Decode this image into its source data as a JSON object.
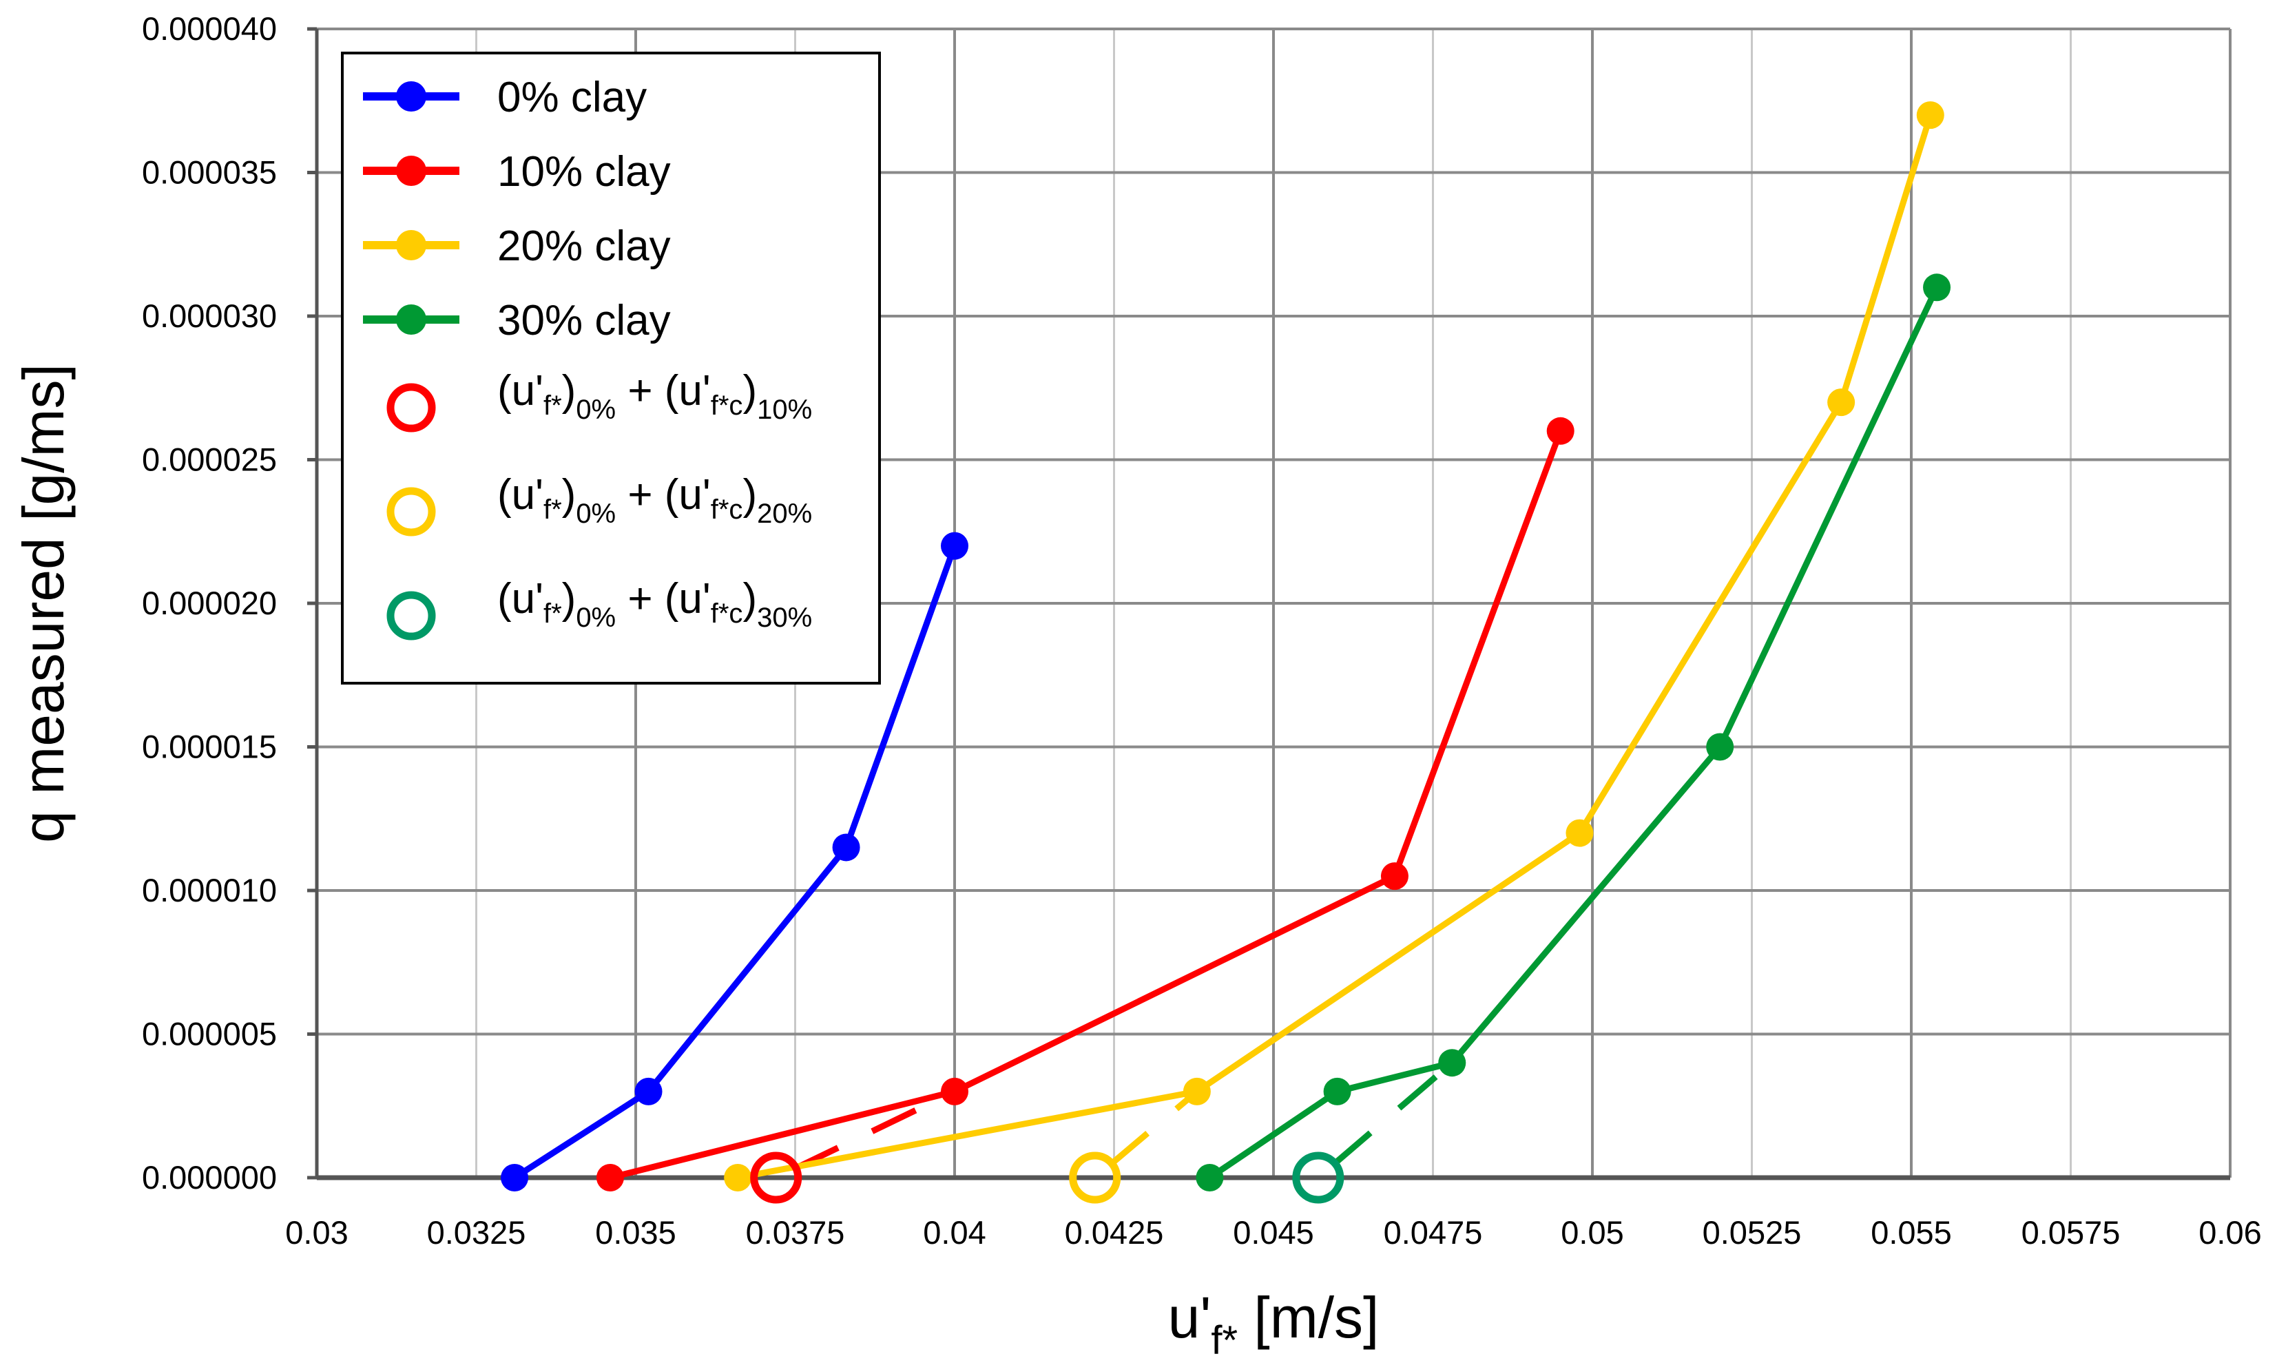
{
  "chart_data": {
    "type": "line",
    "xlabel": "u'f* [m/s]",
    "xlabel_parts": {
      "main": "u'",
      "sub": "f*",
      "unit": " [m/s]"
    },
    "ylabel": "q measured [g/ms]",
    "xlim": [
      0.03,
      0.06
    ],
    "ylim": [
      0,
      4e-05
    ],
    "x_ticks": [
      0.03,
      0.0325,
      0.035,
      0.0375,
      0.04,
      0.0425,
      0.045,
      0.0475,
      0.05,
      0.0525,
      0.055,
      0.0575,
      0.06
    ],
    "x_tick_labels": [
      "0.03",
      "0.0325",
      "0.035",
      "0.0375",
      "0.04",
      "0.0425",
      "0.045",
      "0.0475",
      "0.05",
      "0.0525",
      "0.055",
      "0.0575",
      "0.06"
    ],
    "y_ticks": [
      0,
      5e-06,
      1e-05,
      1.5e-05,
      2e-05,
      2.5e-05,
      3e-05,
      3.5e-05,
      4e-05
    ],
    "y_tick_labels": [
      "0.000000",
      "0.000005",
      "0.000010",
      "0.000015",
      "0.000020",
      "0.000025",
      "0.000030",
      "0.000035",
      "0.000040"
    ],
    "grid": true,
    "legend_position": "top-left",
    "series": [
      {
        "name": "0% clay",
        "color": "#0000FF",
        "x": [
          0.0331,
          0.0352,
          0.0383,
          0.04
        ],
        "y": [
          0,
          3e-06,
          1.15e-05,
          2.2e-05
        ]
      },
      {
        "name": "10% clay",
        "color": "#FF0000",
        "x": [
          0.0346,
          0.04,
          0.0469,
          0.0495
        ],
        "y": [
          0,
          3e-06,
          1.05e-05,
          2.6e-05
        ]
      },
      {
        "name": "20% clay",
        "color": "#FFCC00",
        "x": [
          0.0366,
          0.0438,
          0.0498,
          0.0539,
          0.0553
        ],
        "y": [
          0,
          3e-06,
          1.2e-05,
          2.7e-05,
          3.7e-05
        ]
      },
      {
        "name": "30% clay",
        "color": "#009933",
        "x": [
          0.044,
          0.046,
          0.0478,
          0.052,
          0.0554
        ],
        "y": [
          0,
          3e-06,
          4e-06,
          1.5e-05,
          3.1e-05
        ]
      }
    ],
    "open_markers": [
      {
        "name_main": "(u'",
        "sub1": "f*",
        "mid": ")",
        "sub2": "0%",
        "plus": " + (u'",
        "sub3": "f*c",
        "close": ")",
        "sub4": "10%",
        "color": "#FF0000",
        "x": 0.0372,
        "y": 0
      },
      {
        "name_main": "(u'",
        "sub1": "f*",
        "mid": ")",
        "sub2": "0%",
        "plus": " + (u'",
        "sub3": "f*c",
        "close": ")",
        "sub4": "20%",
        "color": "#FFCC00",
        "x": 0.0422,
        "y": 0
      },
      {
        "name_main": "(u'",
        "sub1": "f*",
        "mid": ")",
        "sub2": "0%",
        "plus": " + (u'",
        "sub3": "f*c",
        "close": ")",
        "sub4": "30%",
        "color": "#009966",
        "x": 0.0457,
        "y": 0
      }
    ],
    "dashed_lines": [
      {
        "color": "#FF0000",
        "x": [
          0.0372,
          0.04
        ],
        "y": [
          0,
          3e-06
        ]
      },
      {
        "color": "#FFCC00",
        "x": [
          0.0422,
          0.0438
        ],
        "y": [
          0,
          3e-06
        ]
      },
      {
        "color": "#009933",
        "x": [
          0.0457,
          0.0478
        ],
        "y": [
          0,
          4e-06
        ]
      }
    ]
  }
}
